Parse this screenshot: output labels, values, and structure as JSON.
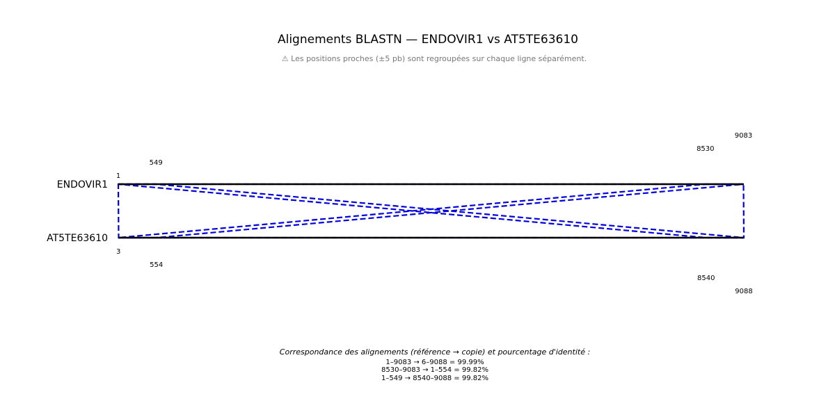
{
  "title": "Alignements BLASTN — ENDOVIR1 vs AT5TE63610",
  "subtitle": "⚠ Les positions proches (±5 pb) sont regroupées sur chaque ligne séparément.",
  "colors": {
    "reference_line": "#000000",
    "alignment": "#0000dd"
  },
  "chart_data": {
    "type": "alignment_map",
    "reference": {
      "name": "ENDOVIR1",
      "position_labels": [
        "1",
        "549",
        "8530",
        "9083"
      ]
    },
    "query": {
      "name": "AT5TE63610",
      "position_labels": [
        "3",
        "554",
        "8540",
        "9088"
      ]
    },
    "alignments": [
      {
        "ref_start": 1,
        "ref_end": 9083,
        "query_start": 6,
        "query_end": 9088,
        "identity": 99.99
      },
      {
        "ref_start": 8530,
        "ref_end": 9083,
        "query_start": 1,
        "query_end": 554,
        "identity": 99.82
      },
      {
        "ref_start": 1,
        "ref_end": 549,
        "query_start": 8540,
        "query_end": 9088,
        "identity": 99.82
      }
    ]
  },
  "footer": {
    "title": "Correspondance des alignements (référence → copie) et pourcentage d'identité :",
    "lines": [
      "1–9083 → 6–9088 = 99.99%",
      "8530–9083 → 1–554 = 99.82%",
      "1–549 → 8540–9088 = 99.82%"
    ]
  }
}
